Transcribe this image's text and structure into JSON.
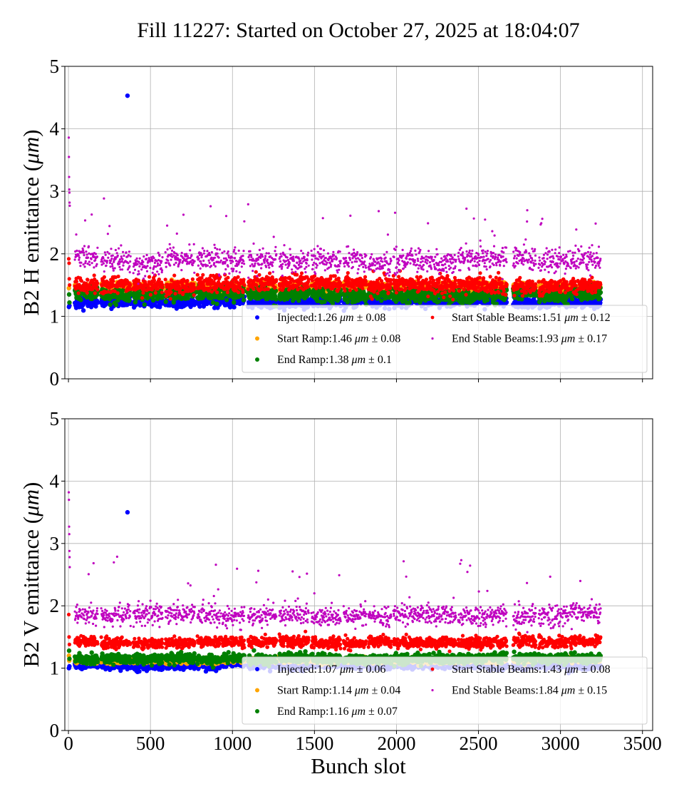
{
  "chart_data": {
    "type": "scatter",
    "title": "Fill 11227: Started on October 27, 2025 at 18:04:07",
    "xlabel": "Bunch slot",
    "xlim": [
      -22,
      3562
    ],
    "xticks": [
      0,
      500,
      1000,
      1500,
      2000,
      2500,
      3000,
      3500
    ],
    "grid": true,
    "legend_placement": "lower-right",
    "unit": "μm",
    "trains": [
      [
        39,
        178
      ],
      [
        200,
        378
      ],
      [
        395,
        573
      ],
      [
        591,
        769
      ],
      [
        786,
        930
      ],
      [
        938,
        1073
      ],
      [
        1095,
        1268
      ],
      [
        1286,
        1464
      ],
      [
        1481,
        1659
      ],
      [
        1677,
        1820
      ],
      [
        1829,
        1972
      ],
      [
        1981,
        2168
      ],
      [
        2176,
        2363
      ],
      [
        2376,
        2559
      ],
      [
        2567,
        2672
      ],
      [
        2711,
        2854
      ],
      [
        2867,
        3050
      ],
      [
        3058,
        3245
      ]
    ],
    "panels": [
      {
        "ylabel": "B2 H emittance (μm)",
        "ylim": [
          0,
          5
        ],
        "yticks": [
          0,
          1,
          2,
          3,
          4,
          5
        ],
        "series": [
          {
            "name": "Injected",
            "mean": "1.26",
            "std": "0.08",
            "color": "#0000ff",
            "typical": 1.24
          },
          {
            "name": "Start Ramp",
            "mean": "1.46",
            "std": "0.08",
            "color": "#ffa500",
            "typical": 1.46
          },
          {
            "name": "End Ramp",
            "mean": "1.38",
            "std": "0.1",
            "color": "#008000",
            "typical": 1.35
          },
          {
            "name": "Start Stable Beams",
            "mean": "1.51",
            "std": "0.12",
            "color": "#ff0000",
            "typical": 1.5
          },
          {
            "name": "End Stable Beams",
            "mean": "1.93",
            "std": "0.17",
            "color": "#bf00bf",
            "typical": 1.9
          }
        ],
        "pilot_points": [
          {
            "series": 4,
            "x": 2,
            "y": 3.86
          },
          {
            "series": 4,
            "x": 3,
            "y": 3.55
          },
          {
            "series": 4,
            "x": 4,
            "y": 3.23
          },
          {
            "series": 4,
            "x": 5,
            "y": 3.03
          },
          {
            "series": 4,
            "x": 6,
            "y": 2.98
          },
          {
            "series": 4,
            "x": 7,
            "y": 2.82
          },
          {
            "series": 4,
            "x": 8,
            "y": 2.77
          },
          {
            "series": 3,
            "x": 2,
            "y": 1.92
          },
          {
            "series": 3,
            "x": 4,
            "y": 1.85
          },
          {
            "series": 3,
            "x": 5,
            "y": 1.6
          },
          {
            "series": 3,
            "x": 7,
            "y": 1.5
          },
          {
            "series": 1,
            "x": 3,
            "y": 1.45
          },
          {
            "series": 2,
            "x": 4,
            "y": 1.35
          },
          {
            "series": 2,
            "x": 6,
            "y": 1.22
          },
          {
            "series": 0,
            "x": 3,
            "y": 1.15
          },
          {
            "series": 0,
            "x": 6,
            "y": 1.17
          }
        ],
        "outliers": [
          {
            "series": 0,
            "x": 360,
            "y": 4.53
          }
        ]
      },
      {
        "ylabel": "B2 V emittance (μm)",
        "ylim": [
          0,
          5
        ],
        "yticks": [
          0,
          1,
          2,
          3,
          4,
          5
        ],
        "series": [
          {
            "name": "Injected",
            "mean": "1.07",
            "std": "0.06",
            "color": "#0000ff",
            "typical": 1.05
          },
          {
            "name": "Start Ramp",
            "mean": "1.14",
            "std": "0.04",
            "color": "#ffa500",
            "typical": 1.13
          },
          {
            "name": "End Ramp",
            "mean": "1.16",
            "std": "0.07",
            "color": "#008000",
            "typical": 1.15
          },
          {
            "name": "Start Stable Beams",
            "mean": "1.43",
            "std": "0.08",
            "color": "#ff0000",
            "typical": 1.42
          },
          {
            "name": "End Stable Beams",
            "mean": "1.84",
            "std": "0.15",
            "color": "#bf00bf",
            "typical": 1.84
          }
        ],
        "pilot_points": [
          {
            "series": 4,
            "x": 2,
            "y": 3.82
          },
          {
            "series": 4,
            "x": 3,
            "y": 3.7
          },
          {
            "series": 4,
            "x": 4,
            "y": 3.27
          },
          {
            "series": 4,
            "x": 5,
            "y": 3.15
          },
          {
            "series": 4,
            "x": 6,
            "y": 2.88
          },
          {
            "series": 4,
            "x": 7,
            "y": 2.78
          },
          {
            "series": 4,
            "x": 8,
            "y": 2.62
          },
          {
            "series": 3,
            "x": 2,
            "y": 1.86
          },
          {
            "series": 3,
            "x": 4,
            "y": 1.5
          },
          {
            "series": 3,
            "x": 6,
            "y": 1.38
          },
          {
            "series": 1,
            "x": 3,
            "y": 1.2
          },
          {
            "series": 1,
            "x": 5,
            "y": 1.12
          },
          {
            "series": 2,
            "x": 4,
            "y": 1.28
          },
          {
            "series": 2,
            "x": 6,
            "y": 1.15
          },
          {
            "series": 0,
            "x": 3,
            "y": 1.0
          },
          {
            "series": 0,
            "x": 6,
            "y": 1.03
          }
        ],
        "outliers": [
          {
            "series": 0,
            "x": 360,
            "y": 3.5
          }
        ]
      }
    ]
  }
}
